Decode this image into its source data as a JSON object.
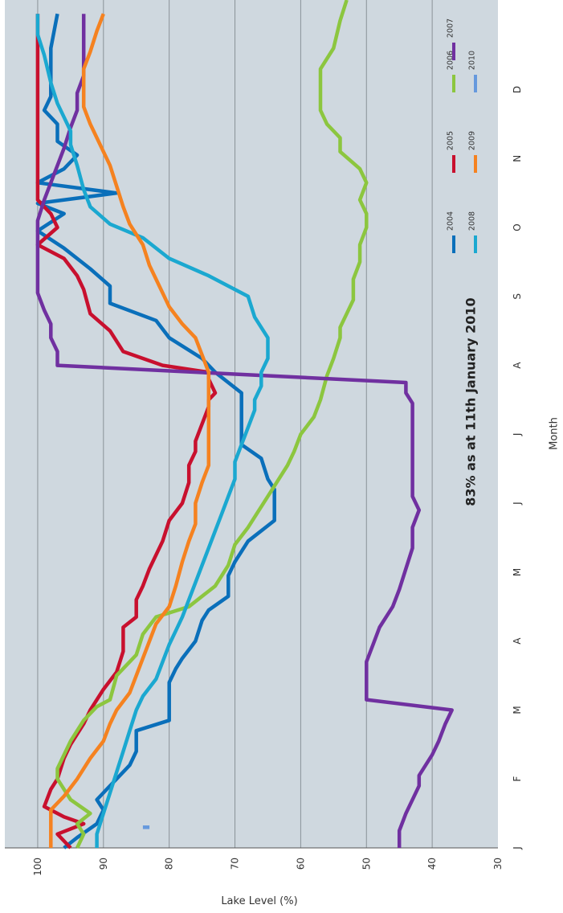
{
  "chart_data": {
    "type": "line",
    "orientation": "rotated-90-clockwise",
    "title": "",
    "xlabel": "Month",
    "ylabel": "Lake Level (%)",
    "x_ticks": [
      "J",
      "F",
      "M",
      "A",
      "M",
      "J",
      "J",
      "A",
      "S",
      "O",
      "N",
      "D"
    ],
    "y_ticks": [
      "30",
      "40",
      "50",
      "60",
      "70",
      "80",
      "90",
      "100"
    ],
    "ylim": [
      30,
      105
    ],
    "xlim": [
      0,
      12.3
    ],
    "grid": true,
    "legend_position": "top-right",
    "annotation": "83% as at 11th January 2010",
    "series": [
      {
        "name": "2004",
        "color": "#0a6fba",
        "points": [
          [
            0,
            96
          ],
          [
            0.15,
            94
          ],
          [
            0.35,
            91
          ],
          [
            0.55,
            90
          ],
          [
            0.7,
            91
          ],
          [
            1.0,
            88
          ],
          [
            1.2,
            86
          ],
          [
            1.4,
            85
          ],
          [
            1.6,
            85
          ],
          [
            1.7,
            85
          ],
          [
            1.85,
            80
          ],
          [
            2.4,
            80
          ],
          [
            2.6,
            79
          ],
          [
            2.75,
            78
          ],
          [
            3.0,
            76
          ],
          [
            3.3,
            75
          ],
          [
            3.45,
            74
          ],
          [
            3.65,
            71
          ],
          [
            3.95,
            71
          ],
          [
            4.15,
            70
          ],
          [
            4.45,
            68
          ],
          [
            4.75,
            64
          ],
          [
            5.2,
            64
          ],
          [
            5.35,
            65
          ],
          [
            5.65,
            66
          ],
          [
            5.85,
            69
          ],
          [
            6.6,
            69
          ],
          [
            6.9,
            73
          ],
          [
            7.1,
            75
          ],
          [
            7.4,
            80
          ],
          [
            7.65,
            82
          ],
          [
            7.9,
            89
          ],
          [
            8.15,
            89
          ],
          [
            8.4,
            92
          ],
          [
            8.7,
            96
          ],
          [
            8.95,
            100
          ],
          [
            9.2,
            96
          ],
          [
            9.35,
            100
          ],
          [
            9.5,
            88
          ],
          [
            9.65,
            100
          ],
          [
            9.85,
            96
          ],
          [
            10.05,
            94
          ],
          [
            10.25,
            97
          ],
          [
            10.5,
            97
          ],
          [
            10.7,
            99
          ],
          [
            10.9,
            98
          ],
          [
            11.1,
            98
          ],
          [
            11.4,
            98
          ],
          [
            11.6,
            98
          ],
          [
            12.1,
            97
          ]
        ]
      },
      {
        "name": "2005",
        "color": "#c8102e",
        "points": [
          [
            0,
            95
          ],
          [
            0.2,
            97
          ],
          [
            0.35,
            93
          ],
          [
            0.45,
            96
          ],
          [
            0.6,
            99
          ],
          [
            0.85,
            98
          ],
          [
            1.0,
            97
          ],
          [
            1.3,
            96
          ],
          [
            1.5,
            95
          ],
          [
            1.8,
            93
          ],
          [
            2.0,
            92
          ],
          [
            2.3,
            90
          ],
          [
            2.55,
            88
          ],
          [
            2.85,
            87
          ],
          [
            3.2,
            87
          ],
          [
            3.35,
            85
          ],
          [
            3.6,
            85
          ],
          [
            3.8,
            84
          ],
          [
            4.05,
            83
          ],
          [
            4.45,
            81
          ],
          [
            4.75,
            80
          ],
          [
            5.0,
            78
          ],
          [
            5.3,
            77
          ],
          [
            5.55,
            77
          ],
          [
            5.75,
            76
          ],
          [
            5.9,
            76
          ],
          [
            6.15,
            75
          ],
          [
            6.4,
            74
          ],
          [
            6.5,
            74
          ],
          [
            6.6,
            73
          ],
          [
            6.8,
            74
          ],
          [
            6.9,
            74
          ],
          [
            7.0,
            81
          ],
          [
            7.2,
            87
          ],
          [
            7.5,
            89
          ],
          [
            7.75,
            92
          ],
          [
            8.1,
            93
          ],
          [
            8.3,
            94
          ],
          [
            8.55,
            96
          ],
          [
            8.75,
            100
          ],
          [
            9.0,
            97
          ],
          [
            9.2,
            98
          ],
          [
            9.4,
            100
          ],
          [
            9.7,
            100
          ],
          [
            10.1,
            100
          ],
          [
            10.5,
            100
          ],
          [
            11.0,
            100
          ],
          [
            11.6,
            100
          ],
          [
            12.1,
            100
          ]
        ]
      },
      {
        "name": "2006",
        "color": "#8cc63f",
        "points": [
          [
            0,
            94
          ],
          [
            0.2,
            93
          ],
          [
            0.35,
            94
          ],
          [
            0.5,
            92
          ],
          [
            0.7,
            95
          ],
          [
            1.0,
            97
          ],
          [
            1.15,
            97
          ],
          [
            1.55,
            95
          ],
          [
            1.85,
            93
          ],
          [
            2.05,
            91
          ],
          [
            2.15,
            89
          ],
          [
            2.5,
            88
          ],
          [
            2.8,
            85
          ],
          [
            3.1,
            84
          ],
          [
            3.35,
            82
          ],
          [
            3.5,
            77
          ],
          [
            3.8,
            73
          ],
          [
            4.1,
            71
          ],
          [
            4.4,
            70
          ],
          [
            4.65,
            68
          ],
          [
            4.95,
            66
          ],
          [
            5.25,
            64
          ],
          [
            5.55,
            62
          ],
          [
            5.75,
            61
          ],
          [
            6.0,
            60
          ],
          [
            6.25,
            58
          ],
          [
            6.5,
            57
          ],
          [
            6.85,
            56
          ],
          [
            7.1,
            55
          ],
          [
            7.4,
            54
          ],
          [
            7.55,
            54
          ],
          [
            7.75,
            53
          ],
          [
            7.95,
            52
          ],
          [
            8.25,
            52
          ],
          [
            8.5,
            51
          ],
          [
            8.75,
            51
          ],
          [
            9.0,
            50
          ],
          [
            9.2,
            50
          ],
          [
            9.4,
            51
          ],
          [
            9.65,
            50
          ],
          [
            9.85,
            51
          ],
          [
            10.1,
            54
          ],
          [
            10.3,
            54
          ],
          [
            10.5,
            56
          ],
          [
            10.7,
            57
          ],
          [
            11.0,
            57
          ],
          [
            11.3,
            57
          ],
          [
            11.6,
            55
          ],
          [
            12.0,
            54
          ],
          [
            12.3,
            53
          ]
        ]
      },
      {
        "name": "2007",
        "color": "#7030a0",
        "points": [
          [
            0,
            45
          ],
          [
            0.25,
            45
          ],
          [
            0.5,
            44
          ],
          [
            0.9,
            42
          ],
          [
            1.05,
            42
          ],
          [
            1.35,
            40
          ],
          [
            1.55,
            39
          ],
          [
            1.8,
            38
          ],
          [
            2.0,
            37
          ],
          [
            2.15,
            50
          ],
          [
            2.25,
            50
          ],
          [
            2.45,
            50
          ],
          [
            2.7,
            50
          ],
          [
            2.95,
            49
          ],
          [
            3.2,
            48
          ],
          [
            3.5,
            46
          ],
          [
            3.75,
            45
          ],
          [
            4.05,
            44
          ],
          [
            4.35,
            43
          ],
          [
            4.65,
            43
          ],
          [
            4.9,
            42
          ],
          [
            5.1,
            43
          ],
          [
            5.35,
            43
          ],
          [
            5.6,
            43
          ],
          [
            5.85,
            43
          ],
          [
            6.1,
            43
          ],
          [
            6.25,
            43
          ],
          [
            6.45,
            43
          ],
          [
            6.6,
            44
          ],
          [
            6.75,
            44
          ],
          [
            7.0,
            97
          ],
          [
            7.2,
            97
          ],
          [
            7.4,
            98
          ],
          [
            7.6,
            98
          ],
          [
            7.8,
            99
          ],
          [
            8.05,
            100
          ],
          [
            8.35,
            100
          ],
          [
            8.6,
            100
          ],
          [
            8.9,
            100
          ],
          [
            9.1,
            100
          ],
          [
            9.4,
            99
          ],
          [
            9.65,
            98
          ],
          [
            9.9,
            97
          ],
          [
            10.15,
            96
          ],
          [
            10.45,
            95
          ],
          [
            10.7,
            94
          ],
          [
            10.95,
            94
          ],
          [
            11.2,
            93
          ],
          [
            11.45,
            93
          ],
          [
            11.7,
            93
          ],
          [
            12.1,
            93
          ]
        ]
      },
      {
        "name": "2008",
        "color": "#1ba8d0",
        "points": [
          [
            0,
            91
          ],
          [
            0.2,
            91
          ],
          [
            0.5,
            90
          ],
          [
            0.8,
            89
          ],
          [
            1.1,
            88
          ],
          [
            1.4,
            87
          ],
          [
            1.7,
            86
          ],
          [
            2.0,
            85
          ],
          [
            2.2,
            84
          ],
          [
            2.45,
            82
          ],
          [
            2.7,
            81
          ],
          [
            2.95,
            80
          ],
          [
            3.15,
            79
          ],
          [
            3.35,
            78
          ],
          [
            3.6,
            77
          ],
          [
            3.85,
            76
          ],
          [
            4.1,
            75
          ],
          [
            4.35,
            74
          ],
          [
            4.6,
            73
          ],
          [
            4.85,
            72
          ],
          [
            5.1,
            71
          ],
          [
            5.35,
            70
          ],
          [
            5.6,
            70
          ],
          [
            5.85,
            69
          ],
          [
            6.1,
            68
          ],
          [
            6.35,
            67
          ],
          [
            6.5,
            67
          ],
          [
            6.7,
            66
          ],
          [
            6.9,
            66
          ],
          [
            7.1,
            65
          ],
          [
            7.4,
            65
          ],
          [
            7.7,
            67
          ],
          [
            8.0,
            68
          ],
          [
            8.3,
            74
          ],
          [
            8.55,
            80
          ],
          [
            8.85,
            84
          ],
          [
            9.05,
            89
          ],
          [
            9.3,
            92
          ],
          [
            9.55,
            93
          ],
          [
            9.9,
            94
          ],
          [
            10.2,
            95
          ],
          [
            10.4,
            95
          ],
          [
            10.6,
            96
          ],
          [
            10.8,
            97
          ],
          [
            11.1,
            98
          ],
          [
            11.5,
            99
          ],
          [
            11.8,
            100
          ],
          [
            12.1,
            100
          ]
        ]
      },
      {
        "name": "2009",
        "color": "#f58220",
        "points": [
          [
            0,
            98
          ],
          [
            0.15,
            98
          ],
          [
            0.3,
            98
          ],
          [
            0.55,
            98
          ],
          [
            0.75,
            96
          ],
          [
            1.0,
            94
          ],
          [
            1.3,
            92
          ],
          [
            1.55,
            90
          ],
          [
            1.8,
            89
          ],
          [
            2.0,
            88
          ],
          [
            2.25,
            86
          ],
          [
            2.5,
            85
          ],
          [
            2.75,
            84
          ],
          [
            3.0,
            83
          ],
          [
            3.25,
            82
          ],
          [
            3.5,
            80
          ],
          [
            3.8,
            79
          ],
          [
            4.15,
            78
          ],
          [
            4.45,
            77
          ],
          [
            4.7,
            76
          ],
          [
            5.0,
            76
          ],
          [
            5.3,
            75
          ],
          [
            5.55,
            74
          ],
          [
            5.8,
            74
          ],
          [
            6.05,
            74
          ],
          [
            6.3,
            74
          ],
          [
            6.5,
            74
          ],
          [
            6.7,
            74
          ],
          [
            6.9,
            74
          ],
          [
            7.15,
            75
          ],
          [
            7.4,
            76
          ],
          [
            7.6,
            78
          ],
          [
            7.85,
            80
          ],
          [
            8.05,
            81
          ],
          [
            8.25,
            82
          ],
          [
            8.45,
            83
          ],
          [
            8.75,
            84
          ],
          [
            9.05,
            86
          ],
          [
            9.3,
            87
          ],
          [
            9.6,
            88
          ],
          [
            9.9,
            89
          ],
          [
            10.1,
            90
          ],
          [
            10.3,
            91
          ],
          [
            10.5,
            92
          ],
          [
            10.75,
            93
          ],
          [
            11.0,
            93
          ],
          [
            11.3,
            93
          ],
          [
            11.55,
            92
          ],
          [
            11.85,
            91
          ],
          [
            12.1,
            90
          ]
        ]
      },
      {
        "name": "2010",
        "color": "#6699dd",
        "points": [
          [
            0.3,
            83
          ],
          [
            0.3,
            84
          ]
        ]
      }
    ]
  }
}
